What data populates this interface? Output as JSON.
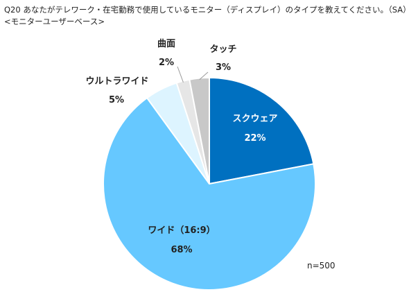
{
  "chart_data": {
    "type": "pie",
    "title": "Q20 あなたがテレワーク・在宅勤務で使用しているモニター（ディスプレイ）のタイプを教えてください。（SA）",
    "subtitle": "<モニターユーザーベース>",
    "note": "n=500",
    "start_angle": "12 o'clock",
    "direction": "clockwise",
    "slices": [
      {
        "label": "スクウェア",
        "value": 22,
        "value_label": "22%",
        "color": "#0070C0"
      },
      {
        "label": "ワイド（16:9）",
        "value": 68,
        "value_label": "68%",
        "color": "#66C8FF"
      },
      {
        "label": "ウルトラワイド",
        "value": 5,
        "value_label": "5%",
        "color": "#DDF4FF"
      },
      {
        "label": "曲面",
        "value": 2,
        "value_label": "2%",
        "color": "#E6E6E6"
      },
      {
        "label": "タッチ",
        "value": 3,
        "value_label": "3%",
        "color": "#C8C8C8"
      }
    ]
  }
}
